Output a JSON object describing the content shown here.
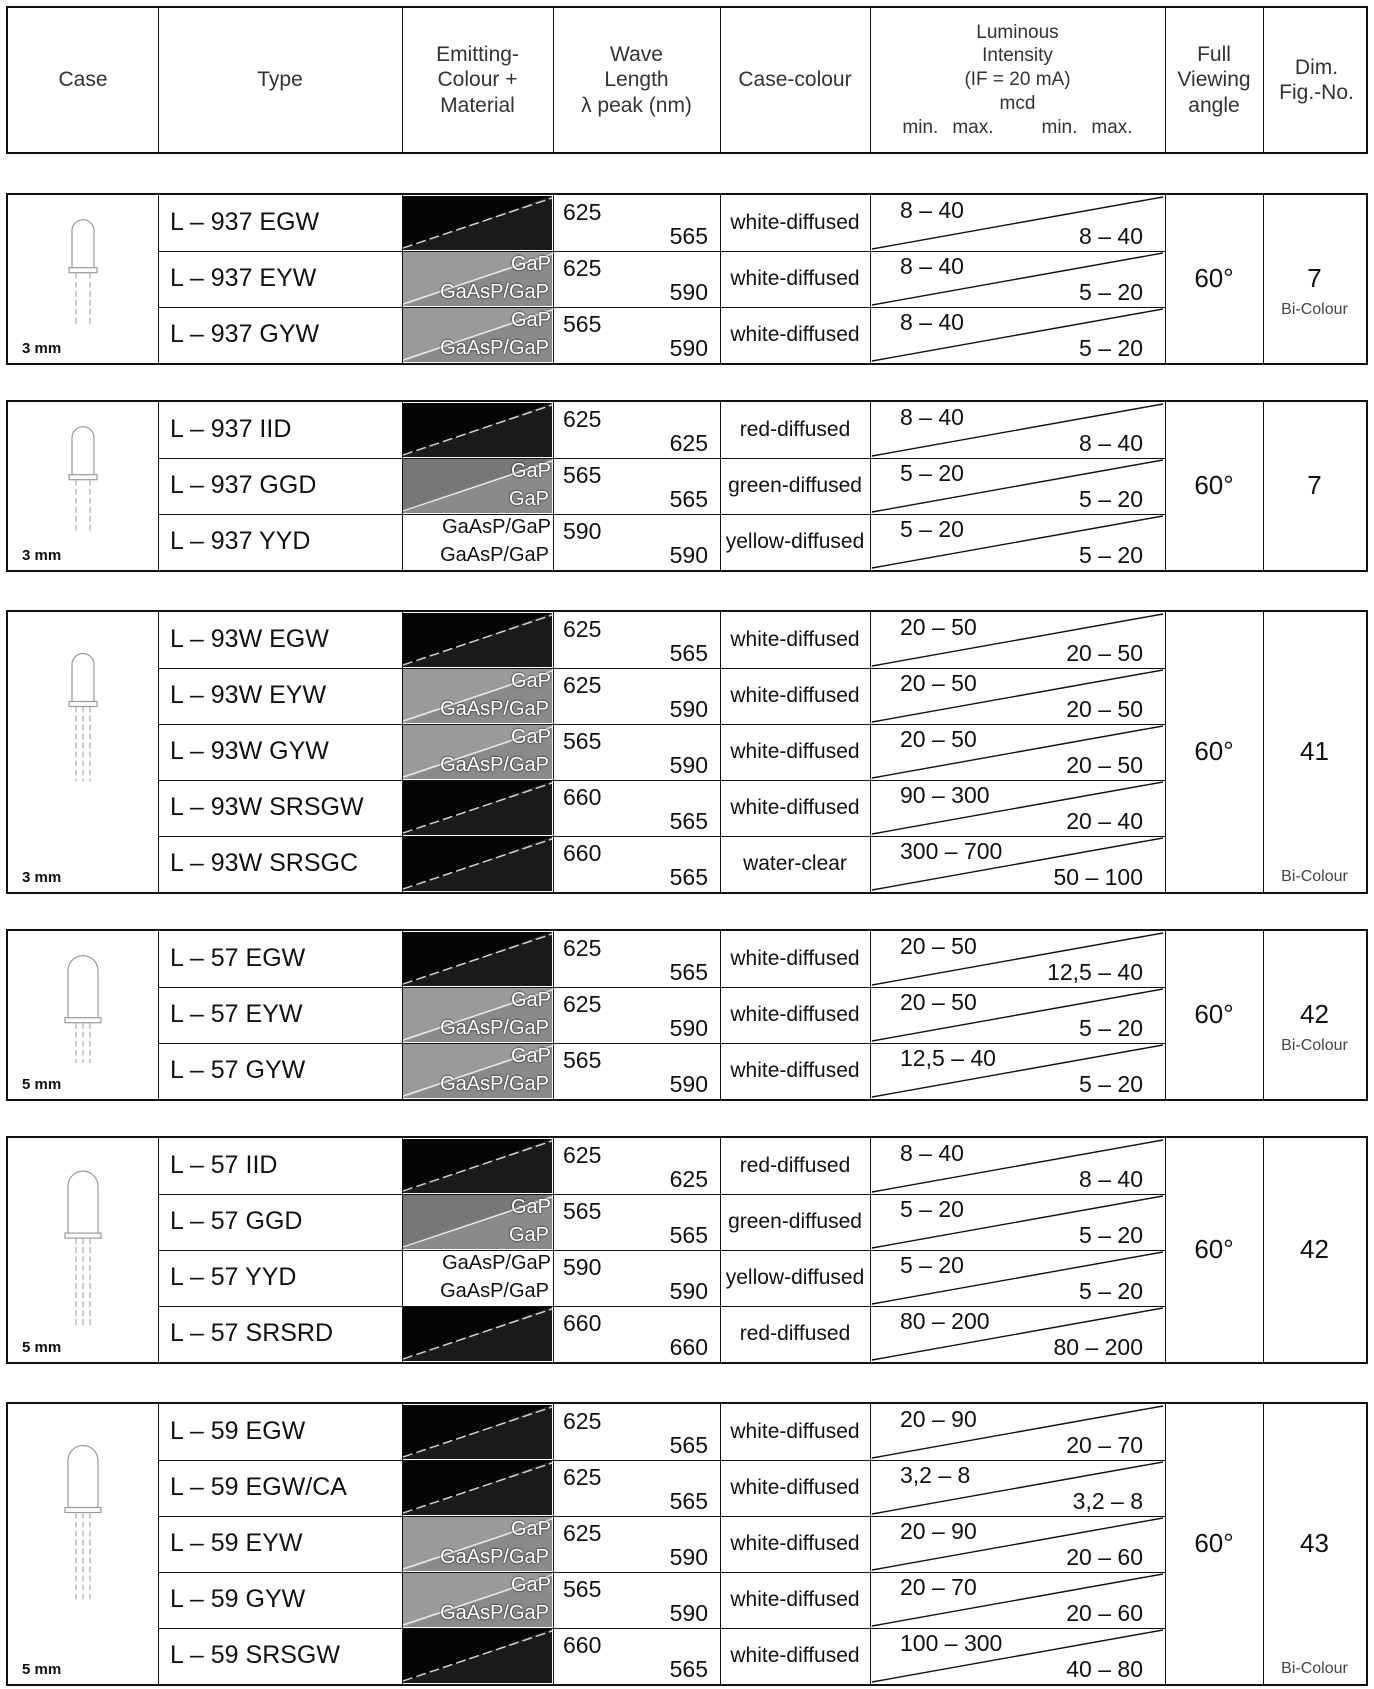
{
  "header": {
    "case": "Case",
    "type": "Type",
    "emitting": [
      "Emitting-",
      "Colour +",
      "Material"
    ],
    "wave": [
      "Wave",
      "Length",
      "λ peak (nm)"
    ],
    "case_colour": "Case-colour",
    "lum": [
      "Luminous",
      "Intensity",
      "(IF = 20 mA)",
      "mcd"
    ],
    "lum_minmax": [
      "min.",
      "max.",
      "min.",
      "max."
    ],
    "viewing": [
      "Full",
      "Viewing",
      "angle"
    ],
    "dim": [
      "Dim.",
      "Fig.-No."
    ]
  },
  "blocks": [
    {
      "case_size": "3 mm",
      "angle": "60°",
      "fig": "7",
      "sub1": "Bi-Colour",
      "sub2": "",
      "rows": [
        {
          "type": "L – 937 EGW",
          "mat": [
            "",
            ""
          ],
          "wl": [
            "625",
            "565"
          ],
          "cc": "white-diffused",
          "lum": [
            "8 – 40",
            "8 – 40"
          ]
        },
        {
          "type": "L – 937 EYW",
          "mat": [
            "GaP",
            "GaAsP/GaP"
          ],
          "wl": [
            "625",
            "590"
          ],
          "cc": "white-diffused",
          "lum": [
            "8 – 40",
            "5 – 20"
          ]
        },
        {
          "type": "L – 937 GYW",
          "mat": [
            "GaP",
            "GaAsP/GaP"
          ],
          "wl": [
            "565",
            "590"
          ],
          "cc": "white-diffused",
          "lum": [
            "8 – 40",
            "5 – 20"
          ]
        }
      ]
    },
    {
      "case_size": "3 mm",
      "angle": "60°",
      "fig": "7",
      "sub1": "",
      "sub2": "",
      "rows": [
        {
          "type": "L – 937 IID",
          "mat": [
            "",
            ""
          ],
          "wl": [
            "625",
            "625"
          ],
          "cc": "red-diffused",
          "lum": [
            "8 – 40",
            "8 – 40"
          ]
        },
        {
          "type": "L – 937 GGD",
          "mat": [
            "GaP",
            "GaP"
          ],
          "wl": [
            "565",
            "565"
          ],
          "cc": "green-diffused",
          "lum": [
            "5 – 20",
            "5 – 20"
          ]
        },
        {
          "type": "L – 937 YYD",
          "mat": [
            "GaAsP/GaP",
            "GaAsP/GaP"
          ],
          "wl": [
            "590",
            "590"
          ],
          "cc": "yellow-diffused",
          "lum": [
            "5 – 20",
            "5 – 20"
          ]
        }
      ]
    },
    {
      "case_size": "3 mm",
      "angle": "60°",
      "fig": "41",
      "sub1": "",
      "sub2": "Bi-Colour",
      "rows": [
        {
          "type": "L – 93W EGW",
          "mat": [
            "",
            ""
          ],
          "wl": [
            "625",
            "565"
          ],
          "cc": "white-diffused",
          "lum": [
            "20 – 50",
            "20 – 50"
          ]
        },
        {
          "type": "L – 93W EYW",
          "mat": [
            "GaP",
            "GaAsP/GaP"
          ],
          "wl": [
            "625",
            "590"
          ],
          "cc": "white-diffused",
          "lum": [
            "20 – 50",
            "20 – 50"
          ]
        },
        {
          "type": "L – 93W GYW",
          "mat": [
            "GaP",
            "GaAsP/GaP"
          ],
          "wl": [
            "565",
            "590"
          ],
          "cc": "white-diffused",
          "lum": [
            "20 – 50",
            "20 – 50"
          ]
        },
        {
          "type": "L – 93W SRSGW",
          "mat": [
            "",
            ""
          ],
          "wl": [
            "660",
            "565"
          ],
          "cc": "white-diffused",
          "lum": [
            "90 – 300",
            "20 – 40"
          ]
        },
        {
          "type": "L – 93W SRSGC",
          "mat": [
            "",
            ""
          ],
          "wl": [
            "660",
            "565"
          ],
          "cc": "water-clear",
          "lum": [
            "300 – 700",
            "50 – 100"
          ]
        }
      ]
    },
    {
      "case_size": "5 mm",
      "angle": "60°",
      "fig": "42",
      "sub1": "Bi-Colour",
      "sub2": "",
      "rows": [
        {
          "type": "L – 57 EGW",
          "mat": [
            "",
            ""
          ],
          "wl": [
            "625",
            "565"
          ],
          "cc": "white-diffused",
          "lum": [
            "20 – 50",
            "12,5 – 40"
          ]
        },
        {
          "type": "L – 57 EYW",
          "mat": [
            "GaP",
            "GaAsP/GaP"
          ],
          "wl": [
            "625",
            "590"
          ],
          "cc": "white-diffused",
          "lum": [
            "20 – 50",
            "5 – 20"
          ]
        },
        {
          "type": "L – 57 GYW",
          "mat": [
            "GaP",
            "GaAsP/GaP"
          ],
          "wl": [
            "565",
            "590"
          ],
          "cc": "white-diffused",
          "lum": [
            "12,5 – 40",
            "5 – 20"
          ]
        }
      ]
    },
    {
      "case_size": "5 mm",
      "angle": "60°",
      "fig": "42",
      "sub1": "",
      "sub2": "",
      "rows": [
        {
          "type": "L – 57 IID",
          "mat": [
            "",
            ""
          ],
          "wl": [
            "625",
            "625"
          ],
          "cc": "red-diffused",
          "lum": [
            "8 – 40",
            "8 – 40"
          ]
        },
        {
          "type": "L – 57 GGD",
          "mat": [
            "GaP",
            "GaP"
          ],
          "wl": [
            "565",
            "565"
          ],
          "cc": "green-diffused",
          "lum": [
            "5 – 20",
            "5 – 20"
          ]
        },
        {
          "type": "L – 57 YYD",
          "mat": [
            "GaAsP/GaP",
            "GaAsP/GaP"
          ],
          "wl": [
            "590",
            "590"
          ],
          "cc": "yellow-diffused",
          "lum": [
            "5 – 20",
            "5 – 20"
          ]
        },
        {
          "type": "L – 57 SRSRD",
          "mat": [
            "",
            ""
          ],
          "wl": [
            "660",
            "660"
          ],
          "cc": "red-diffused",
          "lum": [
            "80 – 200",
            "80 – 200"
          ]
        }
      ]
    },
    {
      "case_size": "5 mm",
      "angle": "60°",
      "fig": "43",
      "sub1": "",
      "sub2": "Bi-Colour",
      "rows": [
        {
          "type": "L – 59 EGW",
          "mat": [
            "",
            ""
          ],
          "wl": [
            "625",
            "565"
          ],
          "cc": "white-diffused",
          "lum": [
            "20 – 90",
            "20 – 70"
          ]
        },
        {
          "type": "L – 59 EGW/CA",
          "mat": [
            "",
            ""
          ],
          "wl": [
            "625",
            "565"
          ],
          "cc": "white-diffused",
          "lum": [
            "3,2 – 8",
            "3,2 – 8"
          ]
        },
        {
          "type": "L – 59 EYW",
          "mat": [
            "GaP",
            "GaAsP/GaP"
          ],
          "wl": [
            "625",
            "590"
          ],
          "cc": "white-diffused",
          "lum": [
            "20 – 90",
            "20 – 60"
          ]
        },
        {
          "type": "L – 59 GYW",
          "mat": [
            "GaP",
            "GaAsP/GaP"
          ],
          "wl": [
            "565",
            "590"
          ],
          "cc": "white-diffused",
          "lum": [
            "20 – 70",
            "20 – 60"
          ]
        },
        {
          "type": "L – 59 SRSGW",
          "mat": [
            "",
            ""
          ],
          "wl": [
            "660",
            "565"
          ],
          "cc": "white-diffused",
          "lum": [
            "100 – 300",
            "40 – 80"
          ]
        }
      ]
    }
  ]
}
